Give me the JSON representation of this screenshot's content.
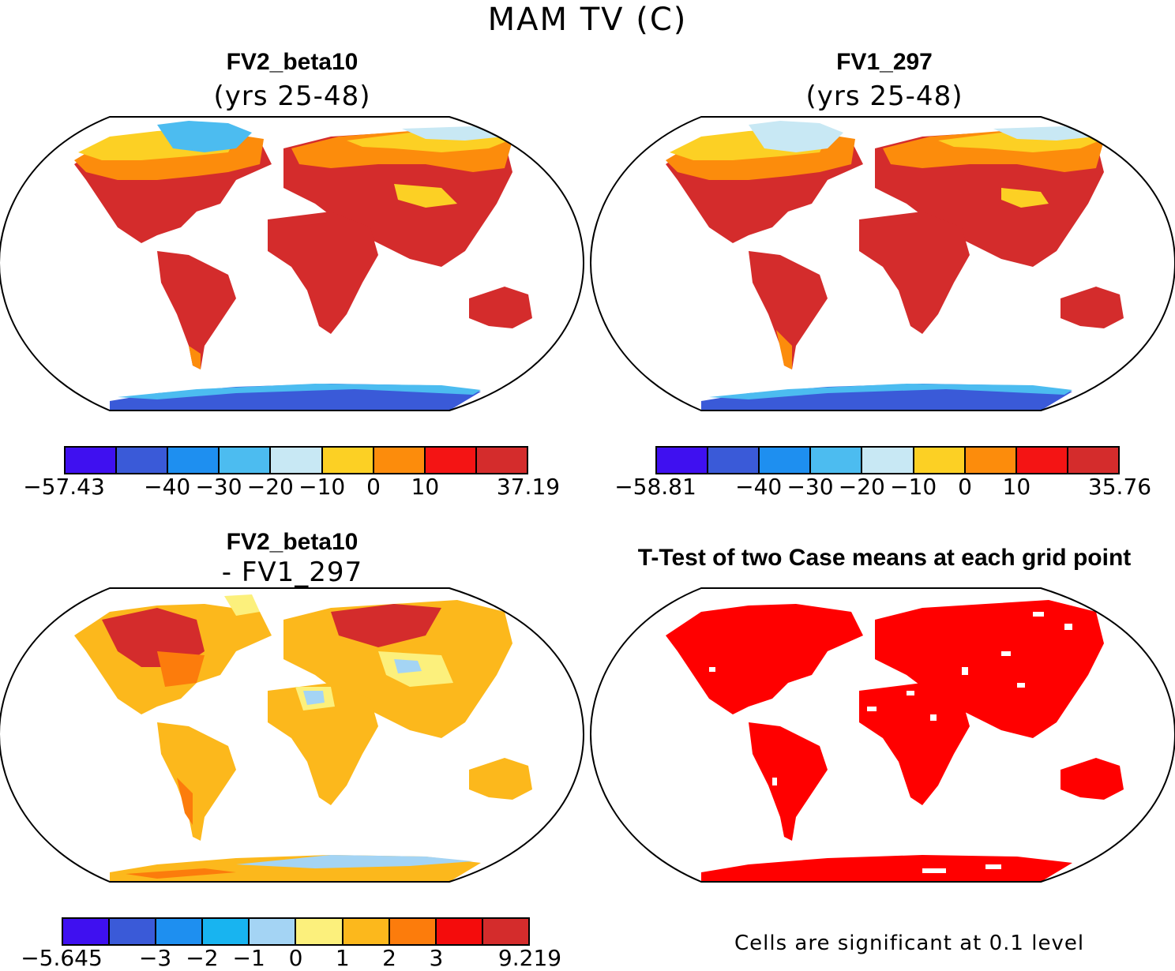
{
  "title": "MAM TV (C)",
  "panels": {
    "top_left": {
      "title": "FV2_beta10",
      "subtitle": "(yrs 25-48)"
    },
    "top_right": {
      "title": "FV1_297",
      "subtitle": "(yrs 25-48)"
    },
    "bottom_left": {
      "title": "FV2_beta10",
      "subtitle": "- FV1_297"
    },
    "bottom_right": {
      "title": "T-Test of two Case means at each grid point",
      "note": "Cells are significant at 0.1 level"
    }
  },
  "colorbars": {
    "top_left": {
      "colors": [
        "#3f10f0",
        "#3a5ad8",
        "#1e8ff0",
        "#4cbcf0",
        "#c8e8f4",
        "#fcd024",
        "#fc8c0c",
        "#f41414",
        "#d42c2c"
      ],
      "ticks": [
        "-57.43",
        "-40",
        "-30",
        "-20",
        "-10",
        "0",
        "10",
        "37.19"
      ]
    },
    "top_right": {
      "colors": [
        "#3f10f0",
        "#3a5ad8",
        "#1e8ff0",
        "#4cbcf0",
        "#c8e8f4",
        "#fcd024",
        "#fc8c0c",
        "#f41414",
        "#d42c2c"
      ],
      "ticks": [
        "-58.81",
        "-40",
        "-30",
        "-20",
        "-10",
        "0",
        "10",
        "35.76"
      ]
    },
    "bottom_left": {
      "colors": [
        "#3f10f0",
        "#3a5ad8",
        "#1e8ff0",
        "#18b4f0",
        "#a4d4f4",
        "#fcf07c",
        "#fcb81c",
        "#fc7c0c",
        "#f40c0c",
        "#d42c2c"
      ],
      "ticks": [
        "-5.645",
        "-3",
        "-2",
        "-1",
        "0",
        "1",
        "2",
        "3",
        "9.219"
      ]
    }
  },
  "legend_colors": {
    "warm": "#d42c2c",
    "mid": "#fc8c0c",
    "cold": "#3a5ad8",
    "signif": "#ff0000"
  }
}
